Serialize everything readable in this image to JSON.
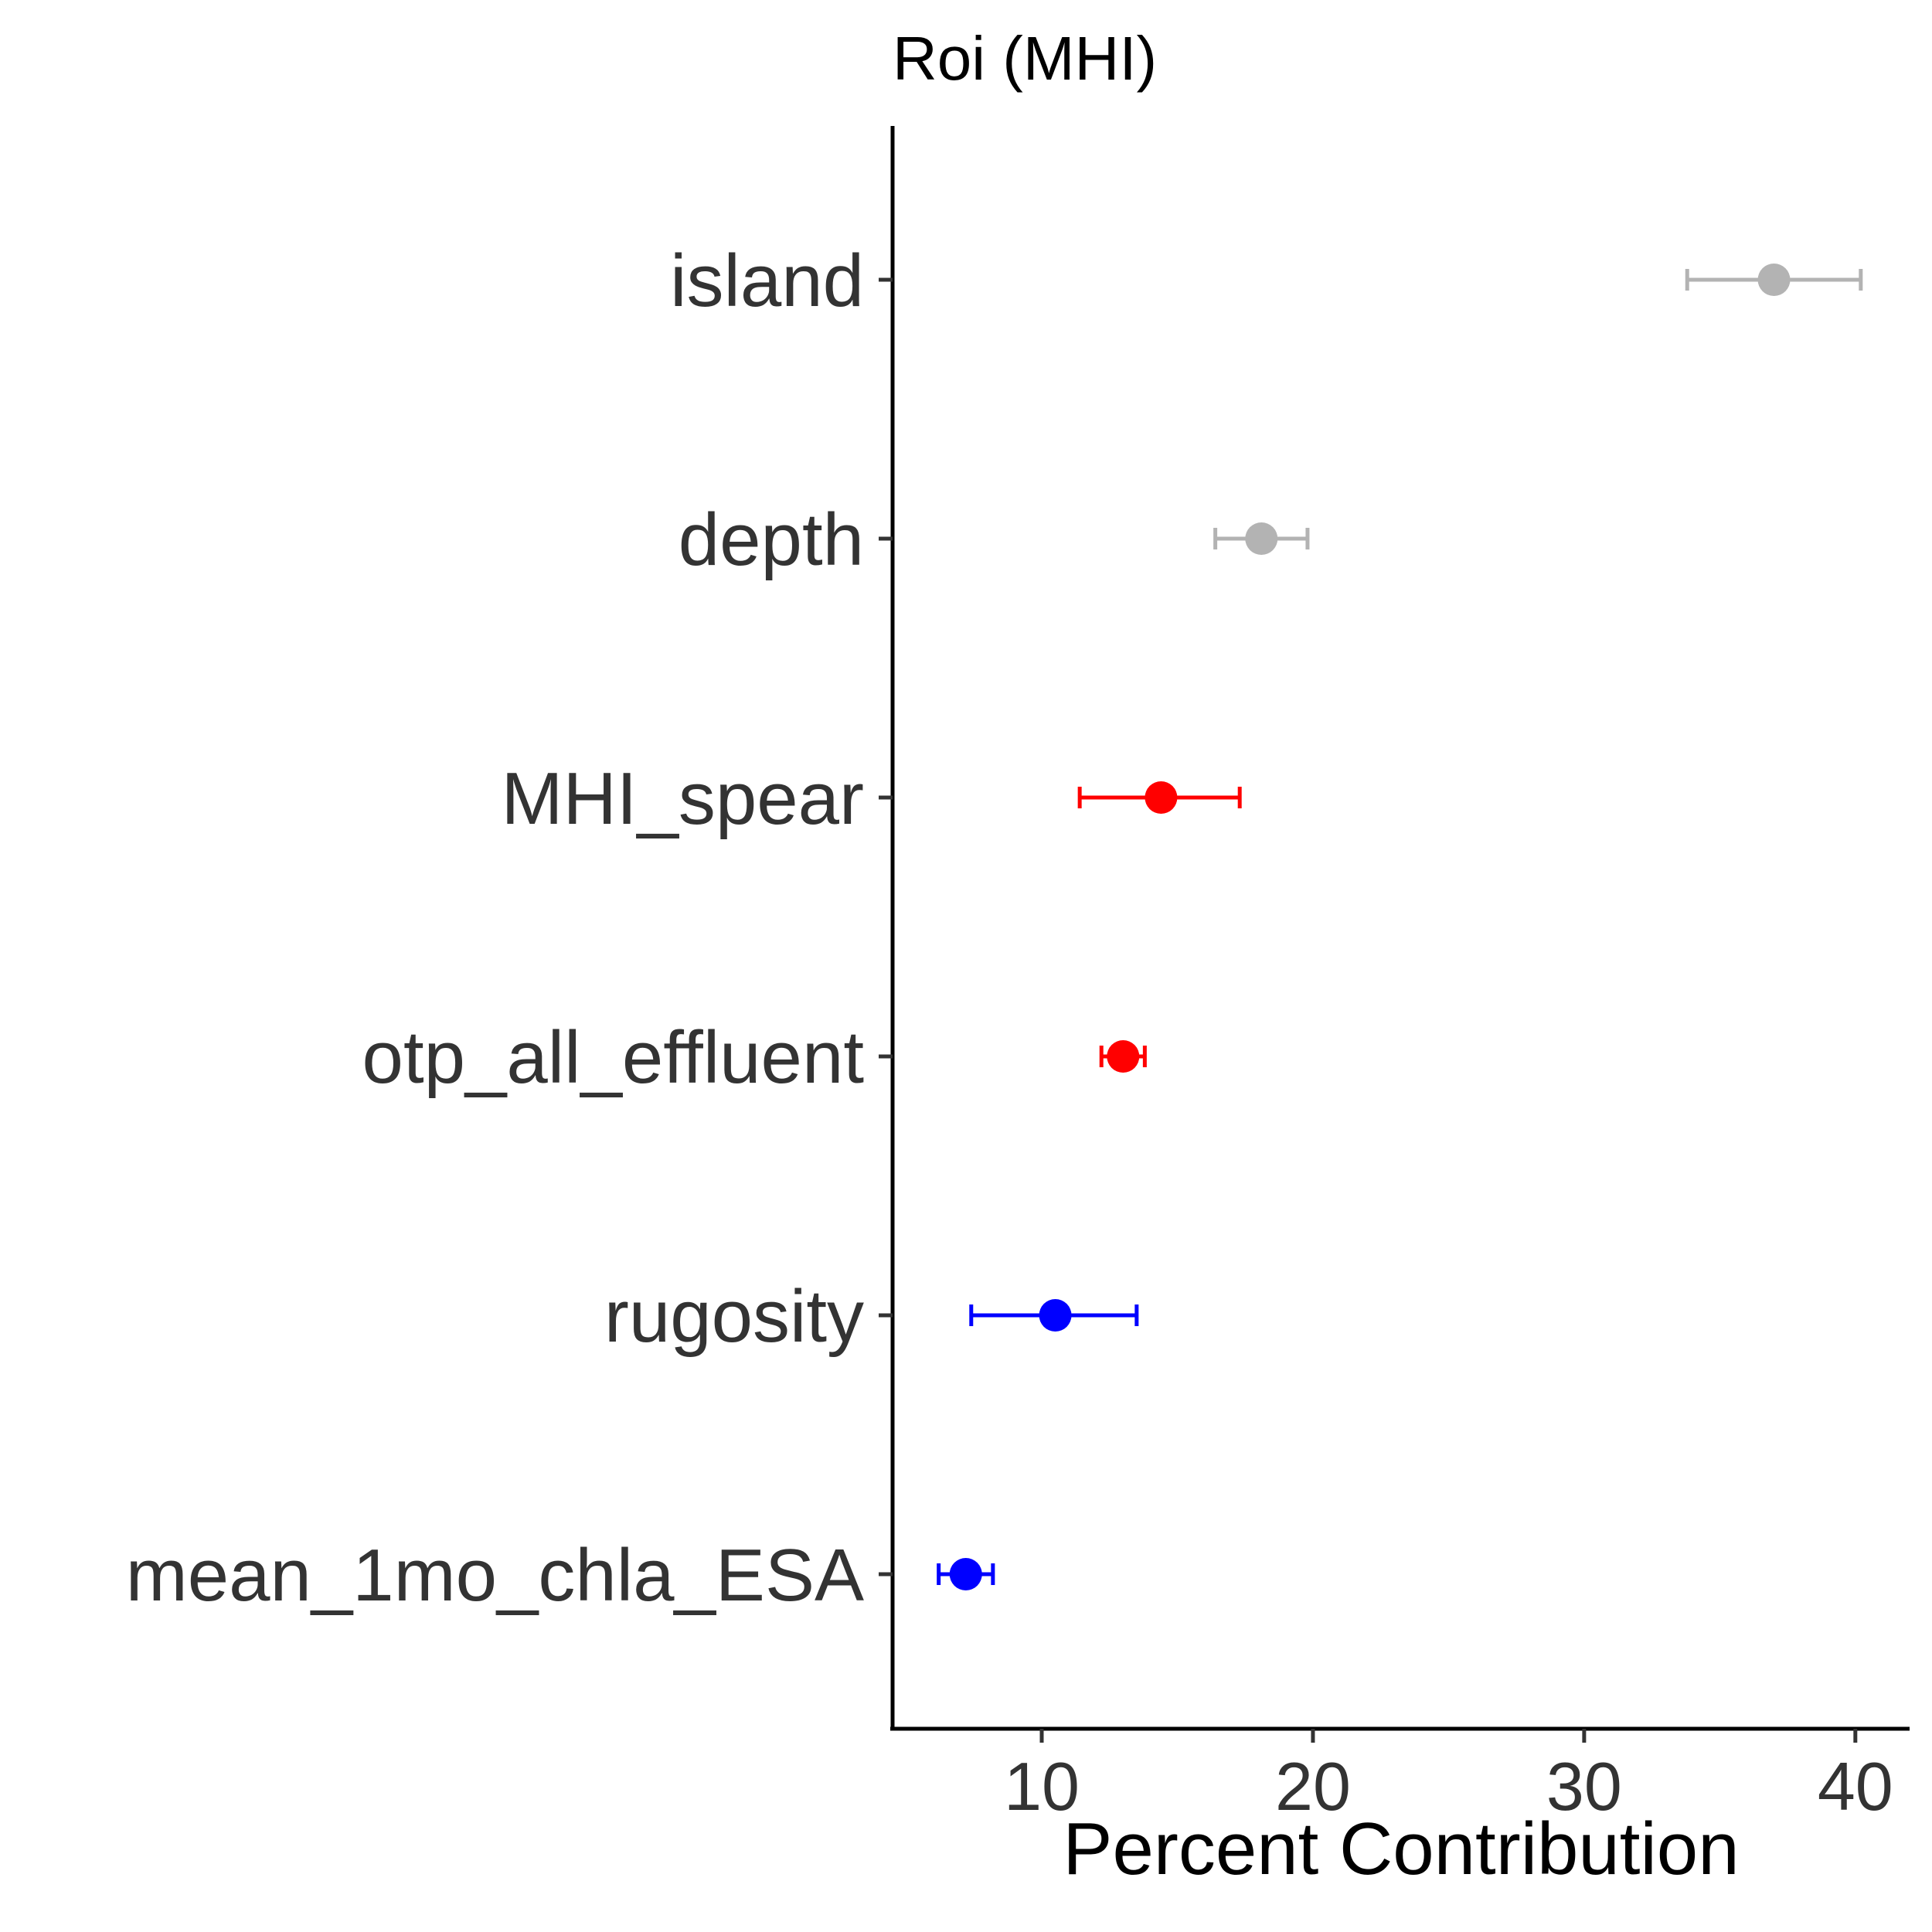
{
  "chart_data": {
    "type": "scatter",
    "title": "Roi (MHI)",
    "xlabel": "Percent Contribution",
    "ylabel": "",
    "xlim": [
      4.5,
      42
    ],
    "xticks": [
      10,
      20,
      30,
      40
    ],
    "xtick_labels": [
      "10",
      "20",
      "30",
      "40"
    ],
    "grid": false,
    "legend": "none",
    "points": [
      {
        "category": "island",
        "value": 37.0,
        "lower": 33.8,
        "upper": 40.2,
        "color": "#b3b3b3"
      },
      {
        "category": "depth",
        "value": 18.1,
        "lower": 16.4,
        "upper": 19.8,
        "color": "#b3b3b3"
      },
      {
        "category": "MHI_spear",
        "value": 14.4,
        "lower": 11.4,
        "upper": 17.3,
        "color": "#ff0000"
      },
      {
        "category": "otp_all_effluent",
        "value": 13.0,
        "lower": 12.2,
        "upper": 13.8,
        "color": "#ff0000"
      },
      {
        "category": "rugosity",
        "value": 10.5,
        "lower": 7.4,
        "upper": 13.5,
        "color": "#0000ff"
      },
      {
        "category": "mean_1mo_chla_ESA",
        "value": 7.2,
        "lower": 6.2,
        "upper": 8.2,
        "color": "#0000ff"
      }
    ]
  }
}
